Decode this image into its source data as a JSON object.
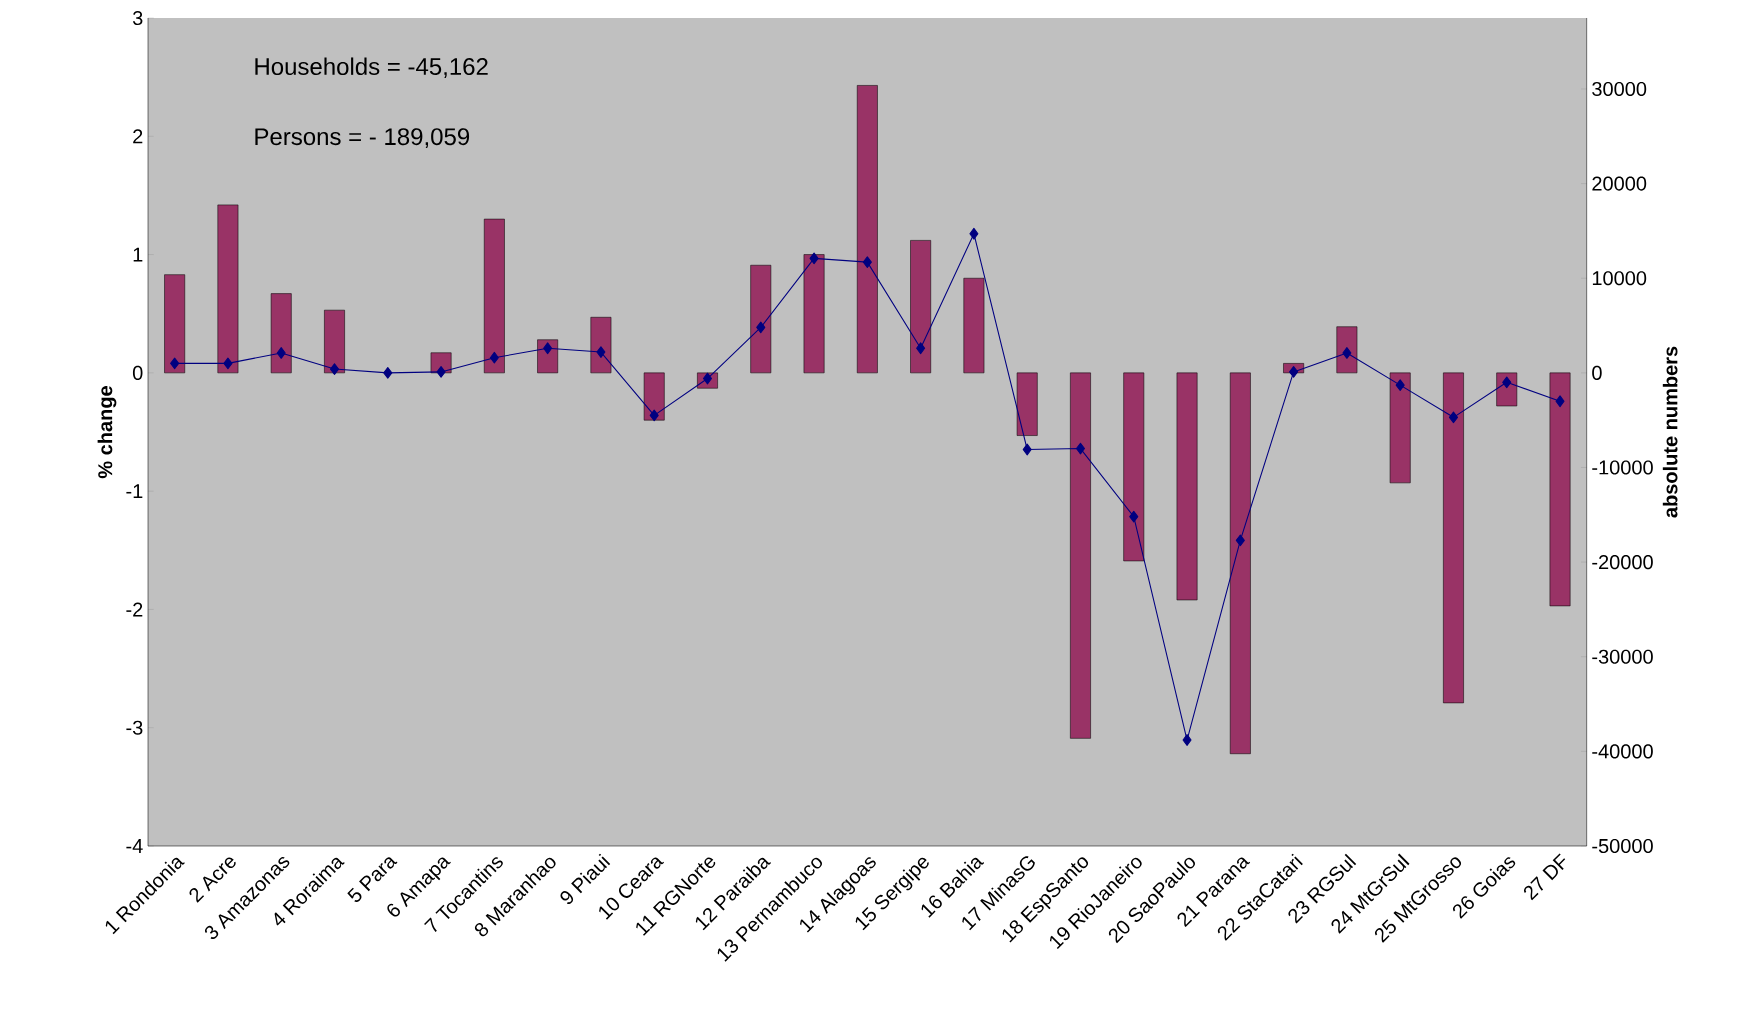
{
  "chart_data": {
    "type": "bar",
    "categories": [
      "1 Rondonia",
      "2 Acre",
      "3 Amazonas",
      "4 Roraima",
      "5 Para",
      "6 Amapa",
      "7 Tocantins",
      "8 Maranhao",
      "9 Piaui",
      "10 Ceara",
      "11 RGNorte",
      "12 Paraiba",
      "13 Pernambuco",
      "14 Alagoas",
      "15 Sergipe",
      "16 Bahia",
      "17 MinasG",
      "18 EspSanto",
      "19 RioJaneiro",
      "20 SaoPaulo",
      "21 Parana",
      "22 StaCatari",
      "23 RGSul",
      "24 MtGrSul",
      "25 MtGrosso",
      "26 Goias",
      "27 DF"
    ],
    "series": [
      {
        "color": "#993366",
        "values": [
          0.83,
          1.42,
          0.67,
          0.53,
          null,
          0.17,
          1.3,
          0.28,
          0.47,
          -0.4,
          -0.13,
          0.91,
          1.0,
          2.43,
          1.12,
          0.8,
          -0.53,
          -3.09,
          -1.59,
          -1.92,
          -3.22,
          0.08,
          0.39,
          -0.93,
          -2.79,
          -0.28,
          -1.97
        ]
      },
      {
        "type": "line",
        "axis": "y2",
        "color": "#000080",
        "marker": "diamond",
        "values": [
          1000,
          1000,
          2100,
          400,
          0,
          100,
          1600,
          2600,
          2200,
          -4500,
          -600,
          4800,
          12100,
          11700,
          2600,
          14700,
          -8100,
          -8000,
          -15200,
          -38800,
          -17700,
          100,
          2100,
          -1300,
          -4700,
          -1000,
          -3000
        ]
      }
    ],
    "ylabel": "% change",
    "y2label": "absolute numbers",
    "ylim": [
      -4,
      3
    ],
    "yticks": [
      -4,
      -3,
      -2,
      -1,
      0,
      1,
      2,
      3
    ],
    "y2lim": [
      -50000,
      37500
    ],
    "y2ticks": [
      -50000,
      -40000,
      -30000,
      -20000,
      -10000,
      0,
      10000,
      20000,
      30000
    ],
    "annotations": [
      "Households = -45,162",
      "Persons = - 189,059"
    ]
  }
}
